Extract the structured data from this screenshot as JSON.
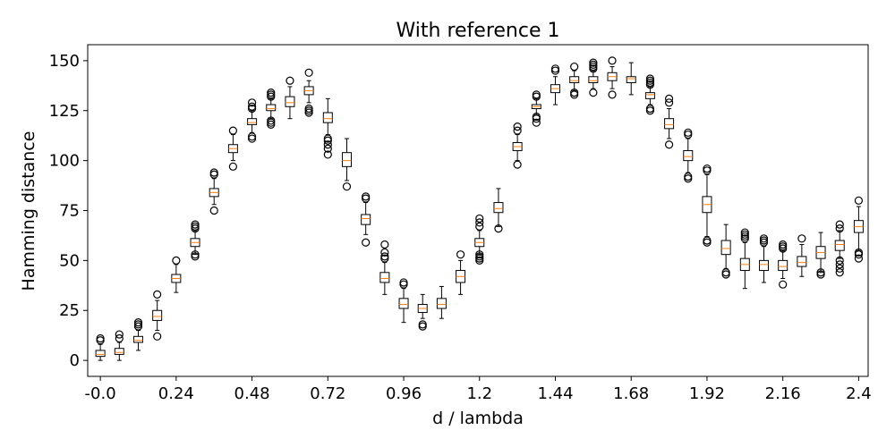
{
  "chart_data": {
    "type": "boxplot",
    "title": "With reference 1",
    "xlabel": "d / lambda",
    "ylabel": "Hamming distance",
    "xlim": [
      -0.04,
      2.43
    ],
    "ylim": [
      -8,
      158
    ],
    "x_tick_labels": [
      "-0.0",
      "0.24",
      "0.48",
      "0.72",
      "0.96",
      "1.2",
      "1.44",
      "1.68",
      "1.92",
      "2.16",
      "2.4"
    ],
    "y_ticks": [
      0,
      25,
      50,
      75,
      100,
      125,
      150
    ],
    "grid": false,
    "colors": {
      "box": "#000000",
      "median": "#ff7f0e",
      "flier": "#000000"
    },
    "boxes": [
      {
        "x": 0.0,
        "whislo": 0,
        "q1": 2,
        "med": 3,
        "q3": 5,
        "whishi": 8,
        "fliers": [
          10,
          11
        ]
      },
      {
        "x": 0.06,
        "whislo": 0,
        "q1": 3,
        "med": 4,
        "q3": 6,
        "whishi": 9,
        "fliers": [
          11,
          13
        ]
      },
      {
        "x": 0.12,
        "whislo": 5,
        "q1": 9,
        "med": 10,
        "q3": 12,
        "whishi": 15,
        "fliers": [
          17,
          18,
          19
        ]
      },
      {
        "x": 0.18,
        "whislo": 15,
        "q1": 20,
        "med": 22,
        "q3": 25,
        "whishi": 30,
        "fliers": [
          12,
          33
        ]
      },
      {
        "x": 0.24,
        "whislo": 34,
        "q1": 39,
        "med": 41,
        "q3": 43,
        "whishi": 48,
        "fliers": [
          50
        ]
      },
      {
        "x": 0.3,
        "whislo": 53,
        "q1": 57,
        "med": 59,
        "q3": 61,
        "whishi": 65,
        "fliers": [
          52,
          53,
          66,
          67,
          68
        ]
      },
      {
        "x": 0.36,
        "whislo": 78,
        "q1": 82,
        "med": 84,
        "q3": 86,
        "whishi": 91,
        "fliers": [
          75,
          93,
          94
        ]
      },
      {
        "x": 0.42,
        "whislo": 100,
        "q1": 104,
        "med": 106,
        "q3": 108,
        "whishi": 113,
        "fliers": [
          97,
          115
        ]
      },
      {
        "x": 0.48,
        "whislo": 114,
        "q1": 118,
        "med": 119,
        "q3": 121,
        "whishi": 125,
        "fliers": [
          111,
          112,
          126,
          127,
          129
        ]
      },
      {
        "x": 0.54,
        "whislo": 121,
        "q1": 125,
        "med": 126,
        "q3": 128,
        "whishi": 131,
        "fliers": [
          118,
          119,
          120,
          132,
          133,
          134
        ]
      },
      {
        "x": 0.6,
        "whislo": 121,
        "q1": 127,
        "med": 129,
        "q3": 132,
        "whishi": 137,
        "fliers": [
          140
        ]
      },
      {
        "x": 0.66,
        "whislo": 129,
        "q1": 133,
        "med": 135,
        "q3": 137,
        "whishi": 140,
        "fliers": [
          124,
          125,
          126,
          144
        ]
      },
      {
        "x": 0.72,
        "whislo": 113,
        "q1": 119,
        "med": 121,
        "q3": 124,
        "whishi": 131,
        "fliers": [
          103,
          106,
          108,
          110,
          111
        ]
      },
      {
        "x": 0.78,
        "whislo": 90,
        "q1": 97,
        "med": 100,
        "q3": 104,
        "whishi": 111,
        "fliers": [
          87
        ]
      },
      {
        "x": 0.84,
        "whislo": 63,
        "q1": 68,
        "med": 71,
        "q3": 73,
        "whishi": 79,
        "fliers": [
          59,
          81,
          82
        ]
      },
      {
        "x": 0.9,
        "whislo": 33,
        "q1": 39,
        "med": 41,
        "q3": 44,
        "whishi": 49,
        "fliers": [
          51,
          52,
          54,
          58
        ]
      },
      {
        "x": 0.96,
        "whislo": 19,
        "q1": 26,
        "med": 28,
        "q3": 31,
        "whishi": 36,
        "fliers": [
          38,
          39
        ]
      },
      {
        "x": 1.02,
        "whislo": 21,
        "q1": 24,
        "med": 26,
        "q3": 28,
        "whishi": 33,
        "fliers": [
          17,
          18
        ]
      },
      {
        "x": 1.08,
        "whislo": 21,
        "q1": 26,
        "med": 28,
        "q3": 31,
        "whishi": 37,
        "fliers": []
      },
      {
        "x": 1.14,
        "whislo": 33,
        "q1": 39,
        "med": 42,
        "q3": 45,
        "whishi": 50,
        "fliers": [
          53
        ]
      },
      {
        "x": 1.2,
        "whislo": 53,
        "q1": 57,
        "med": 59,
        "q3": 61,
        "whishi": 65,
        "fliers": [
          50,
          51,
          52,
          53,
          67,
          69,
          71
        ]
      },
      {
        "x": 1.26,
        "whislo": 67,
        "q1": 74,
        "med": 76,
        "q3": 79,
        "whishi": 86,
        "fliers": [
          66
        ]
      },
      {
        "x": 1.32,
        "whislo": 100,
        "q1": 105,
        "med": 107,
        "q3": 109,
        "whishi": 113,
        "fliers": [
          98,
          115,
          117
        ]
      },
      {
        "x": 1.38,
        "whislo": 123,
        "q1": 126,
        "med": 127,
        "q3": 128,
        "whishi": 131,
        "fliers": [
          119,
          121,
          122,
          132,
          133
        ]
      },
      {
        "x": 1.44,
        "whislo": 128,
        "q1": 134,
        "med": 136,
        "q3": 138,
        "whishi": 142,
        "fliers": [
          145,
          146
        ]
      },
      {
        "x": 1.5,
        "whislo": 135,
        "q1": 139,
        "med": 140,
        "q3": 142,
        "whishi": 145,
        "fliers": [
          133,
          134,
          147
        ]
      },
      {
        "x": 1.56,
        "whislo": 136,
        "q1": 139,
        "med": 140,
        "q3": 142,
        "whishi": 145,
        "fliers": [
          134,
          146,
          147,
          148,
          149
        ]
      },
      {
        "x": 1.62,
        "whislo": 136,
        "q1": 140,
        "med": 142,
        "q3": 144,
        "whishi": 147,
        "fliers": [
          133,
          150
        ]
      },
      {
        "x": 1.68,
        "whislo": 133,
        "q1": 139,
        "med": 141,
        "q3": 142,
        "whishi": 149,
        "fliers": []
      },
      {
        "x": 1.74,
        "whislo": 128,
        "q1": 131,
        "med": 133,
        "q3": 134,
        "whishi": 137,
        "fliers": [
          125,
          126,
          138,
          139,
          140,
          141
        ]
      },
      {
        "x": 1.8,
        "whislo": 111,
        "q1": 116,
        "med": 118,
        "q3": 121,
        "whishi": 126,
        "fliers": [
          108,
          129,
          131
        ]
      },
      {
        "x": 1.86,
        "whislo": 94,
        "q1": 100,
        "med": 102,
        "q3": 105,
        "whishi": 111,
        "fliers": [
          91,
          92,
          113,
          114
        ]
      },
      {
        "x": 1.92,
        "whislo": 62,
        "q1": 74,
        "med": 78,
        "q3": 82,
        "whishi": 93,
        "fliers": [
          59,
          60,
          95,
          96
        ]
      },
      {
        "x": 1.98,
        "whislo": 46,
        "q1": 53,
        "med": 56,
        "q3": 60,
        "whishi": 68,
        "fliers": [
          43,
          44
        ]
      },
      {
        "x": 2.04,
        "whislo": 36,
        "q1": 45,
        "med": 48,
        "q3": 51,
        "whishi": 59,
        "fliers": [
          61,
          62,
          63,
          64
        ]
      },
      {
        "x": 2.1,
        "whislo": 39,
        "q1": 45,
        "med": 48,
        "q3": 50,
        "whishi": 57,
        "fliers": [
          59,
          60,
          61
        ]
      },
      {
        "x": 2.16,
        "whislo": 41,
        "q1": 45,
        "med": 47,
        "q3": 50,
        "whishi": 55,
        "fliers": [
          38,
          56,
          57,
          58
        ]
      },
      {
        "x": 2.22,
        "whislo": 42,
        "q1": 47,
        "med": 49,
        "q3": 52,
        "whishi": 58,
        "fliers": [
          61
        ]
      },
      {
        "x": 2.28,
        "whislo": 44,
        "q1": 51,
        "med": 54,
        "q3": 57,
        "whishi": 64,
        "fliers": [
          43,
          44
        ]
      },
      {
        "x": 2.34,
        "whislo": 51,
        "q1": 55,
        "med": 58,
        "q3": 60,
        "whishi": 65,
        "fliers": [
          44,
          46,
          48,
          50,
          66,
          68
        ]
      },
      {
        "x": 2.4,
        "whislo": 55,
        "q1": 64,
        "med": 67,
        "q3": 70,
        "whishi": 77,
        "fliers": [
          51,
          53,
          54,
          80
        ]
      }
    ]
  }
}
